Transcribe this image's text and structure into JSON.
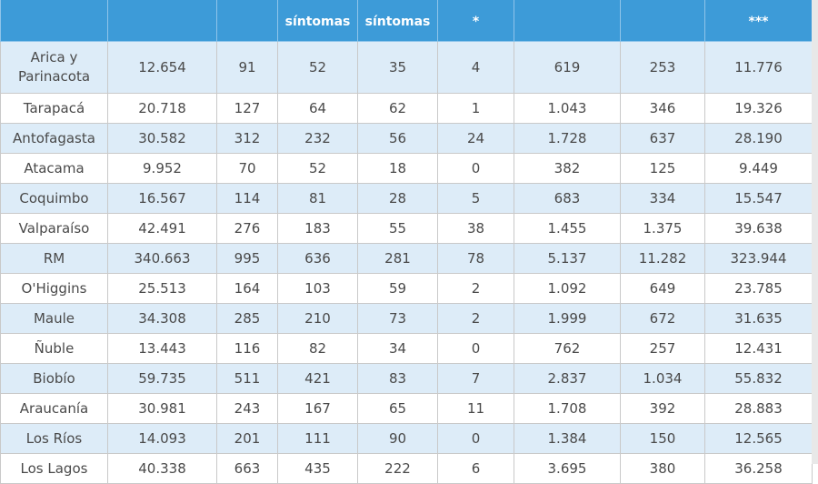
{
  "table": {
    "header": [
      "síntomas",
      "síntomas",
      "*",
      "***"
    ],
    "rows": [
      [
        "Arica y Parinacota",
        "12.654",
        "91",
        "52",
        "35",
        "4",
        "619",
        "253",
        "11.776"
      ],
      [
        "Tarapacá",
        "20.718",
        "127",
        "64",
        "62",
        "1",
        "1.043",
        "346",
        "19.326"
      ],
      [
        "Antofagasta",
        "30.582",
        "312",
        "232",
        "56",
        "24",
        "1.728",
        "637",
        "28.190"
      ],
      [
        "Atacama",
        "9.952",
        "70",
        "52",
        "18",
        "0",
        "382",
        "125",
        "9.449"
      ],
      [
        "Coquimbo",
        "16.567",
        "114",
        "81",
        "28",
        "5",
        "683",
        "334",
        "15.547"
      ],
      [
        "Valparaíso",
        "42.491",
        "276",
        "183",
        "55",
        "38",
        "1.455",
        "1.375",
        "39.638"
      ],
      [
        "RM",
        "340.663",
        "995",
        "636",
        "281",
        "78",
        "5.137",
        "11.282",
        "323.944"
      ],
      [
        "O'Higgins",
        "25.513",
        "164",
        "103",
        "59",
        "2",
        "1.092",
        "649",
        "23.785"
      ],
      [
        "Maule",
        "34.308",
        "285",
        "210",
        "73",
        "2",
        "1.999",
        "672",
        "31.635"
      ],
      [
        "Ñuble",
        "13.443",
        "116",
        "82",
        "34",
        "0",
        "762",
        "257",
        "12.431"
      ],
      [
        "Biobío",
        "59.735",
        "511",
        "421",
        "83",
        "7",
        "2.837",
        "1.034",
        "55.832"
      ],
      [
        "Araucanía",
        "30.981",
        "243",
        "167",
        "65",
        "11",
        "1.708",
        "392",
        "28.883"
      ],
      [
        "Los Ríos",
        "14.093",
        "201",
        "111",
        "90",
        "0",
        "1.384",
        "150",
        "12.565"
      ],
      [
        "Los Lagos",
        "40.338",
        "663",
        "435",
        "222",
        "6",
        "3.695",
        "380",
        "36.258"
      ]
    ]
  }
}
